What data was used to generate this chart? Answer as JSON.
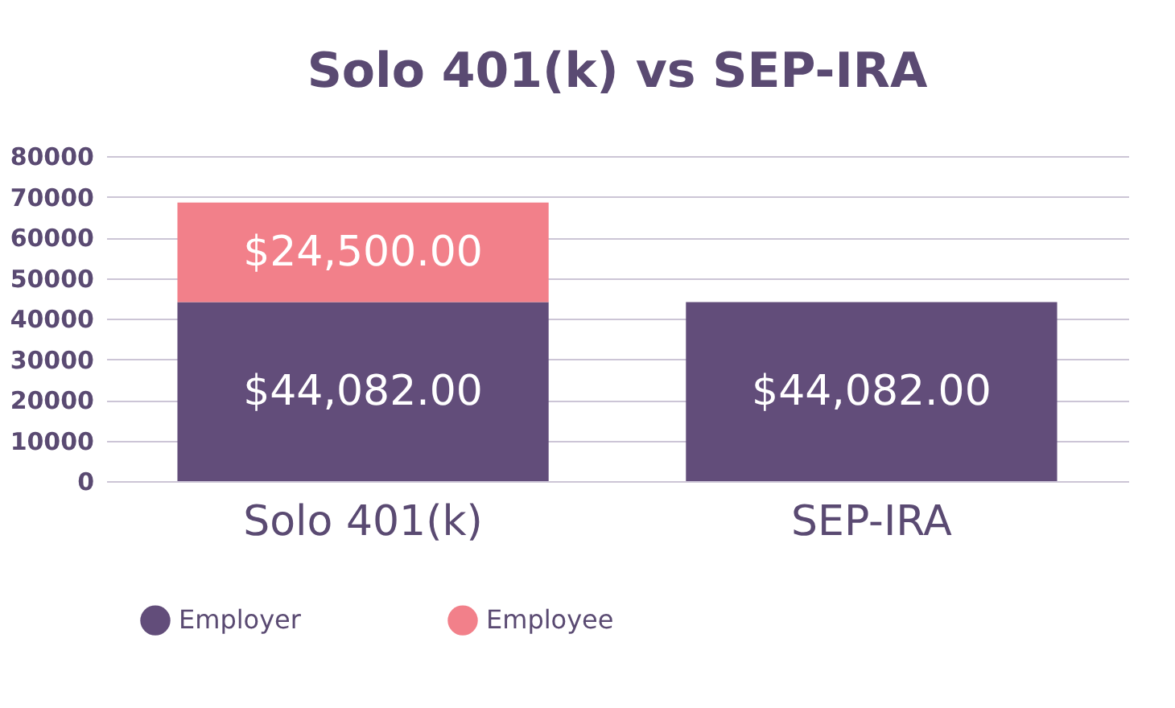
{
  "chart_data": {
    "type": "bar",
    "title": "Solo 401(k) vs SEP-IRA",
    "categories": [
      "Solo 401(k)",
      "SEP-IRA"
    ],
    "stacked": true,
    "series": [
      {
        "name": "Employer",
        "color": "#624d7a",
        "values": [
          44082,
          44082
        ],
        "value_labels": [
          "$44,082.00",
          "$44,082.00"
        ]
      },
      {
        "name": "Employee",
        "color": "#f2808a",
        "values": [
          24500,
          null
        ],
        "value_labels": [
          "$24,500.00",
          null
        ]
      }
    ],
    "ylim": [
      0,
      80000
    ],
    "yticks": [
      0,
      10000,
      20000,
      30000,
      40000,
      50000,
      60000,
      70000,
      80000
    ],
    "grid": "y",
    "legend": "bottom"
  }
}
